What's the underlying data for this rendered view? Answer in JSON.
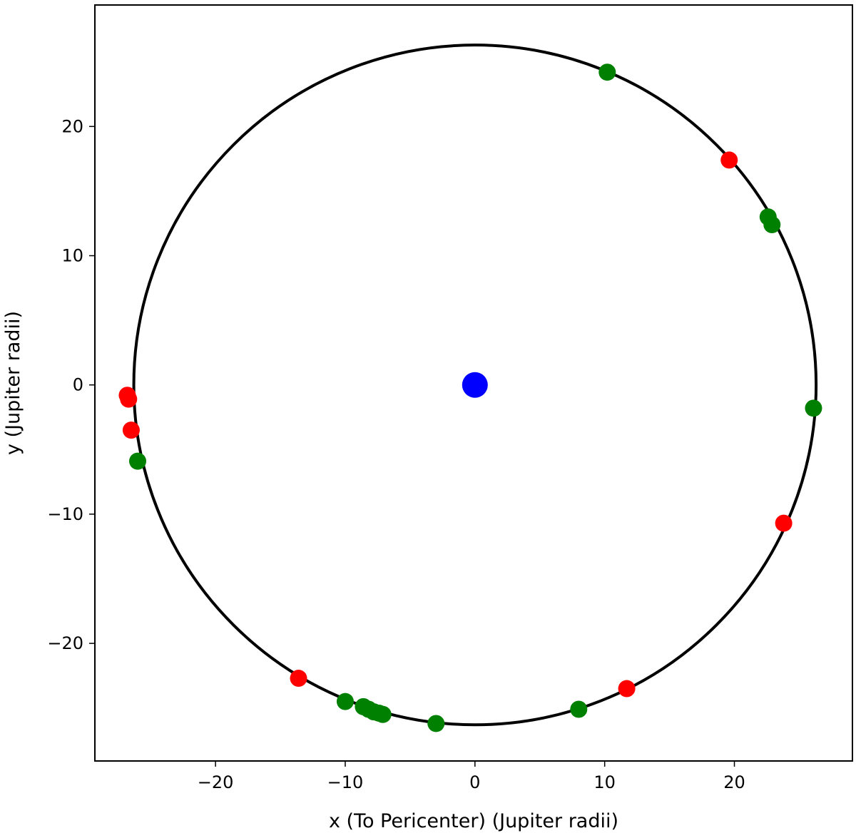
{
  "chart_data": {
    "type": "scatter",
    "title": "",
    "xlabel": "x (To Pericenter) (Jupiter radii)",
    "ylabel": "y (Jupiter radii)",
    "xlim": [
      -29.3,
      29.1
    ],
    "ylim": [
      -29.1,
      29.4
    ],
    "xticks": [
      -20,
      -10,
      0,
      10,
      20
    ],
    "yticks": [
      20,
      10,
      0,
      -10,
      -20
    ],
    "xtick_labels": [
      "−20",
      "−10",
      "0",
      "10",
      "20"
    ],
    "ytick_labels": [
      "20",
      "10",
      "0",
      "−10",
      "−20"
    ],
    "grid": false,
    "orbit": {
      "center": [
        0,
        0
      ],
      "radius": 26.3,
      "color": "#000000"
    },
    "series": [
      {
        "color": "#0000ff",
        "points": [
          [
            0,
            0
          ]
        ]
      },
      {
        "color": "#ff0000",
        "points": [
          [
            19.6,
            17.4
          ],
          [
            23.8,
            -10.7
          ],
          [
            11.7,
            -23.5
          ],
          [
            -13.6,
            -22.7
          ],
          [
            -26.5,
            -3.5
          ],
          [
            -26.8,
            -0.8
          ],
          [
            -26.7,
            -1.1
          ]
        ]
      },
      {
        "color": "#008000",
        "points": [
          [
            10.2,
            24.2
          ],
          [
            22.6,
            13.0
          ],
          [
            22.9,
            12.4
          ],
          [
            26.1,
            -1.8
          ],
          [
            8.0,
            -25.1
          ],
          [
            -3.0,
            -26.2
          ],
          [
            -10.0,
            -24.5
          ],
          [
            -26.0,
            -5.9
          ],
          [
            -8.6,
            -24.9
          ],
          [
            -8.2,
            -25.1
          ],
          [
            -7.8,
            -25.3
          ],
          [
            -7.4,
            -25.4
          ],
          [
            -7.1,
            -25.5
          ]
        ]
      }
    ]
  }
}
